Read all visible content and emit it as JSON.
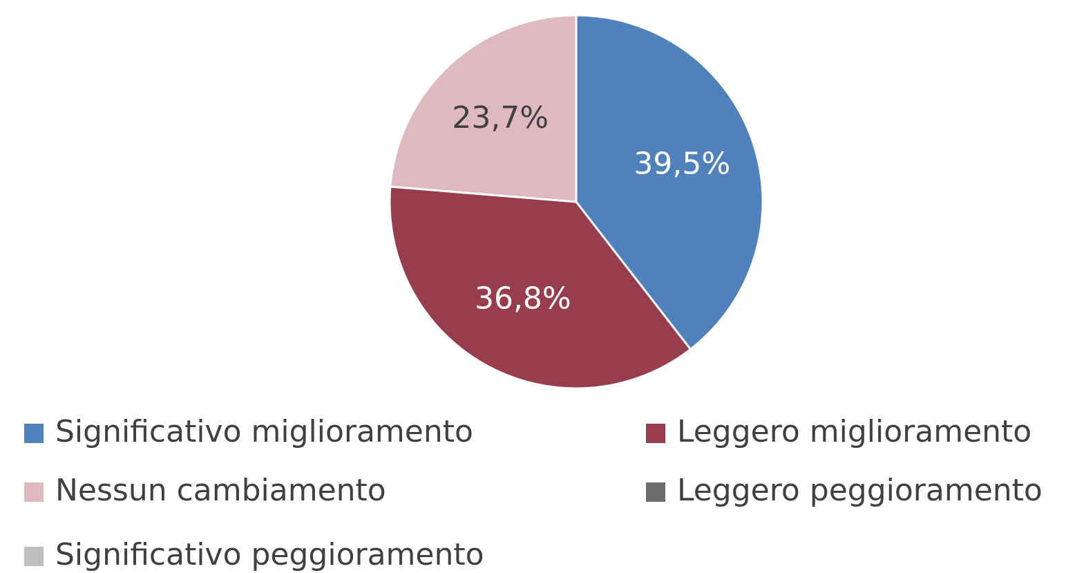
{
  "chart_data": {
    "type": "pie",
    "categories": [
      "Significativo miglioramento",
      "Leggero miglioramento",
      "Nessun cambiamento",
      "Leggero peggioramento",
      "Significativo peggioramento"
    ],
    "values": [
      39.5,
      36.8,
      23.7,
      0,
      0
    ],
    "value_labels": [
      "39,5%",
      "36,8%",
      "23,7%",
      null,
      null
    ],
    "colors": [
      "#4f81bd",
      "#983d4e",
      "#dfb9c1",
      "#6d6d6d",
      "#bfbfbf"
    ],
    "legend": "bottom"
  }
}
